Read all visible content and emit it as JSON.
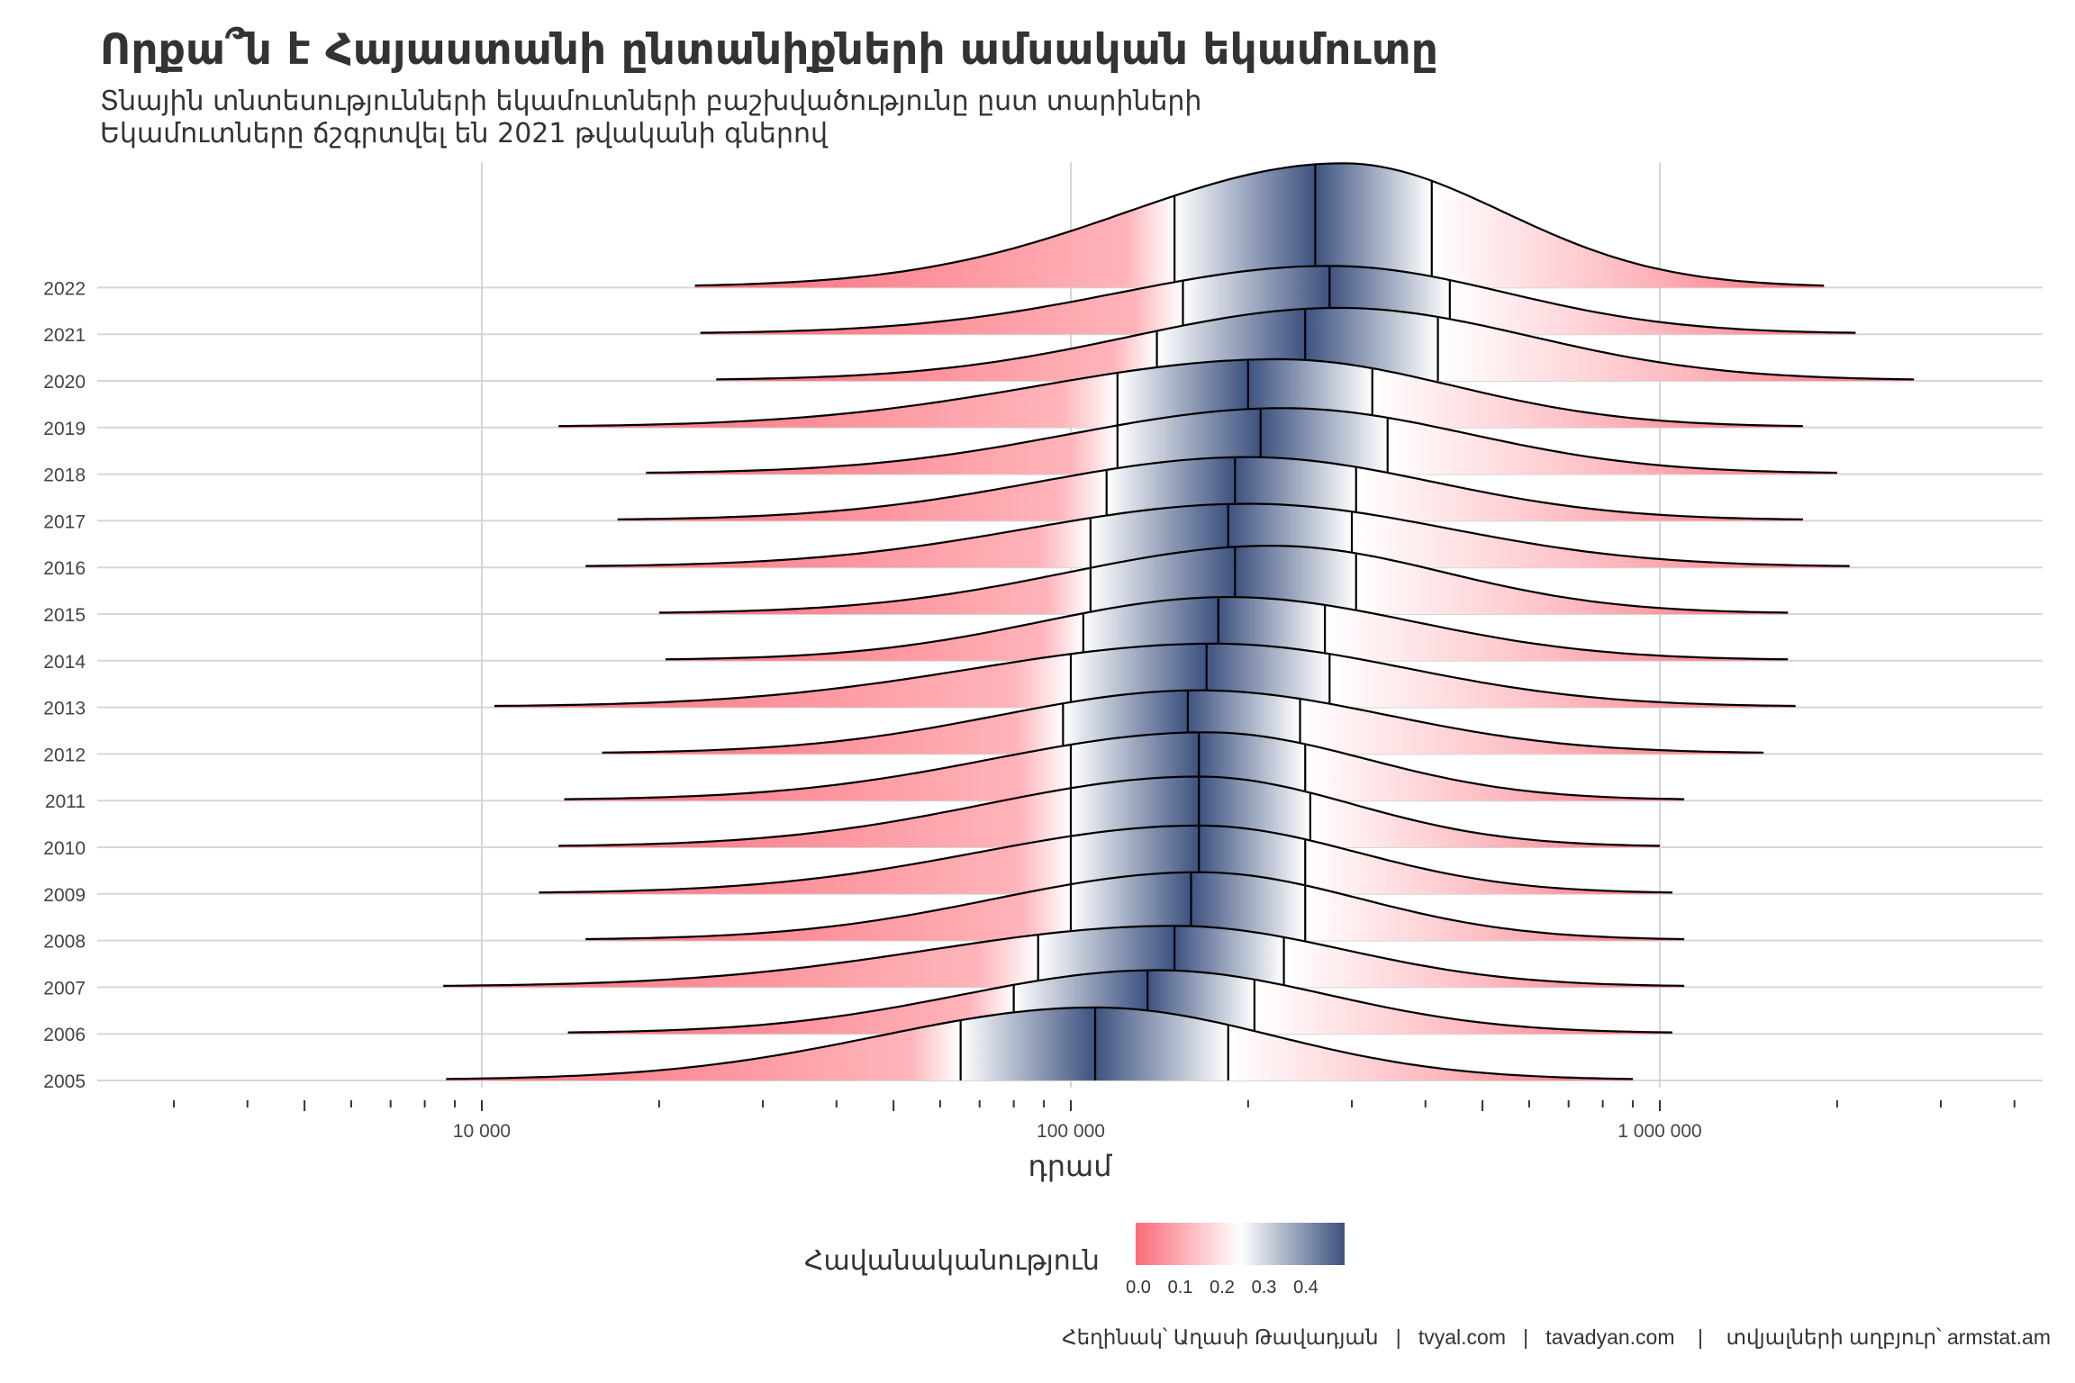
{
  "header": {
    "title": "Որքա՞ն է Հայաստանի ընտանիքների ամսական եկամուտը",
    "subtitle_line1": "Տնային տնտեսությունների եկամուտների բաշխվածությունը ըստ տարիների",
    "subtitle_line2": "Եկամուտները ճշգրտվել են 2021 թվականի գներով"
  },
  "legend": {
    "title": "Հավանականություն",
    "ticks": [
      "0.0",
      "0.1",
      "0.2",
      "0.3",
      "0.4"
    ],
    "colors": {
      "low": "#FB6B79",
      "mid": "#FFFFFF",
      "high": "#3D5280"
    }
  },
  "caption": "Հեղինակ՝ Աղասի Թավադյան   |   tvyal.com   |   tavadyan.com    |    տվյալների աղբյուր՝ armstat.am",
  "chart_data": {
    "type": "ridgeline",
    "title": "Որքա՞ն է Հայաստանի ընտանիքների ամսական եկամուտը",
    "xlabel": "դրամ",
    "ylabel": "",
    "xscale": "log10",
    "xlim": [
      2500,
      4000000
    ],
    "x_ticks": [
      {
        "value": 10000,
        "label": "10 000"
      },
      {
        "value": 100000,
        "label": "100 000"
      },
      {
        "value": 1000000,
        "label": "1 000 000"
      }
    ],
    "fill": "density-probability gradient (red → white → navy)",
    "series": [
      {
        "year": "2005",
        "min": 8700,
        "p10": 65000,
        "median": 110000,
        "p90": 185000,
        "max": 900000,
        "peak_x": 110000,
        "peak_height": 1.55
      },
      {
        "year": "2006",
        "min": 14000,
        "p10": 80000,
        "median": 135000,
        "p90": 205000,
        "max": 1050000,
        "peak_x": 140000,
        "peak_height": 1.35
      },
      {
        "year": "2007",
        "min": 8600,
        "p10": 88000,
        "median": 150000,
        "p90": 230000,
        "max": 1100000,
        "peak_x": 150000,
        "peak_height": 1.3
      },
      {
        "year": "2008",
        "min": 15000,
        "p10": 100000,
        "median": 160000,
        "p90": 250000,
        "max": 1100000,
        "peak_x": 165000,
        "peak_height": 1.45
      },
      {
        "year": "2009",
        "min": 12500,
        "p10": 100000,
        "median": 165000,
        "p90": 250000,
        "max": 1050000,
        "peak_x": 165000,
        "peak_height": 1.45
      },
      {
        "year": "2010",
        "min": 13500,
        "p10": 100000,
        "median": 165000,
        "p90": 255000,
        "max": 1000000,
        "peak_x": 165000,
        "peak_height": 1.5
      },
      {
        "year": "2011",
        "min": 13800,
        "p10": 100000,
        "median": 165000,
        "p90": 250000,
        "max": 1100000,
        "peak_x": 170000,
        "peak_height": 1.45
      },
      {
        "year": "2012",
        "min": 16000,
        "p10": 97000,
        "median": 158000,
        "p90": 245000,
        "max": 1500000,
        "peak_x": 165000,
        "peak_height": 1.35
      },
      {
        "year": "2013",
        "min": 10500,
        "p10": 100000,
        "median": 170000,
        "p90": 275000,
        "max": 1700000,
        "peak_x": 175000,
        "peak_height": 1.35
      },
      {
        "year": "2014",
        "min": 20500,
        "p10": 105000,
        "median": 178000,
        "p90": 270000,
        "max": 1650000,
        "peak_x": 185000,
        "peak_height": 1.35
      },
      {
        "year": "2015",
        "min": 20000,
        "p10": 108000,
        "median": 190000,
        "p90": 305000,
        "max": 1650000,
        "peak_x": 220000,
        "peak_height": 1.45
      },
      {
        "year": "2016",
        "min": 15000,
        "p10": 108000,
        "median": 185000,
        "p90": 300000,
        "max": 2100000,
        "peak_x": 200000,
        "peak_height": 1.35
      },
      {
        "year": "2017",
        "min": 17000,
        "p10": 115000,
        "median": 190000,
        "p90": 305000,
        "max": 1750000,
        "peak_x": 200000,
        "peak_height": 1.35
      },
      {
        "year": "2018",
        "min": 19000,
        "p10": 120000,
        "median": 210000,
        "p90": 345000,
        "max": 2000000,
        "peak_x": 230000,
        "peak_height": 1.4
      },
      {
        "year": "2019",
        "min": 13500,
        "p10": 120000,
        "median": 200000,
        "p90": 325000,
        "max": 1750000,
        "peak_x": 225000,
        "peak_height": 1.45
      },
      {
        "year": "2020",
        "min": 25000,
        "p10": 140000,
        "median": 250000,
        "p90": 420000,
        "max": 2700000,
        "peak_x": 285000,
        "peak_height": 1.55
      },
      {
        "year": "2021",
        "min": 23500,
        "p10": 155000,
        "median": 275000,
        "p90": 440000,
        "max": 2150000,
        "peak_x": 275000,
        "peak_height": 1.45
      },
      {
        "year": "2022",
        "min": 23000,
        "p10": 150000,
        "median": 260000,
        "p90": 410000,
        "max": 1900000,
        "peak_x": 290000,
        "peak_height": 2.65
      }
    ]
  }
}
